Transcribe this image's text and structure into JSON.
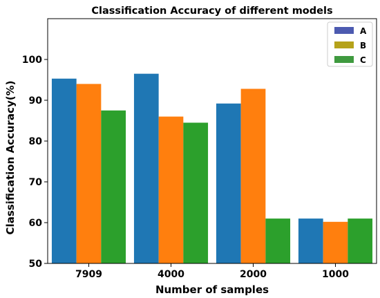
{
  "chart_data": {
    "type": "bar",
    "title": "Classification Accuracy of different models",
    "xlabel": "Number of samples",
    "ylabel": "Classification Accuracy(%)",
    "categories": [
      "7909",
      "4000",
      "2000",
      "1000"
    ],
    "series": [
      {
        "name": "A",
        "values": [
          95.3,
          96.5,
          89.2,
          61.0
        ]
      },
      {
        "name": "B",
        "values": [
          94.0,
          86.0,
          92.8,
          60.2
        ]
      },
      {
        "name": "C",
        "values": [
          87.5,
          84.5,
          61.0,
          61.0
        ]
      }
    ],
    "ylim": [
      50,
      110
    ],
    "yticks": [
      50,
      60,
      70,
      80,
      90,
      100
    ],
    "grid": false,
    "legend_position": "top-right",
    "colors": {
      "bar_A": "#1f77b4",
      "bar_B": "#ff7f0e",
      "bar_C": "#2ca02c",
      "legend_A": "#4c5ab0",
      "legend_B": "#b5a21a",
      "legend_C": "#3f9a3f"
    }
  }
}
